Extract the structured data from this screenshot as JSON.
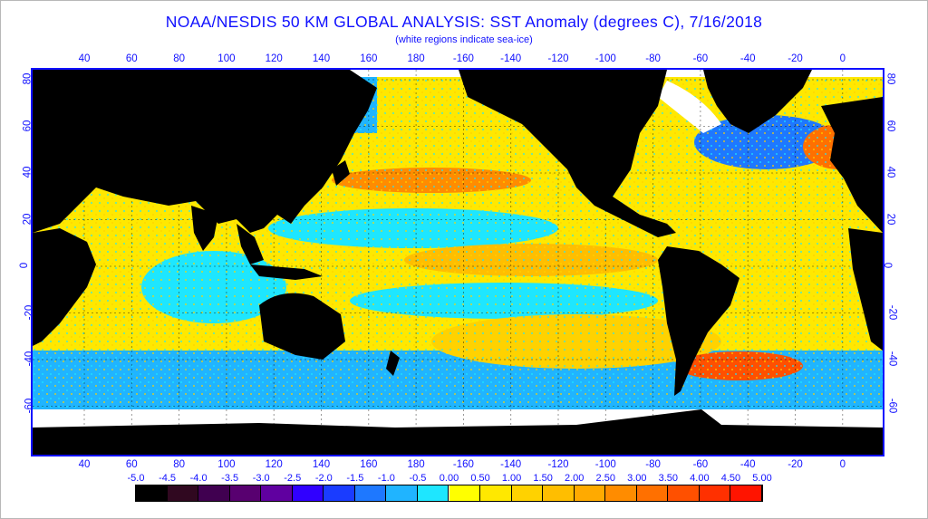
{
  "title": "NOAA/NESDIS 50 KM GLOBAL ANALYSIS: SST Anomaly (degrees C), 7/16/2018",
  "subtitle": "(white regions indicate sea-ice)",
  "map": {
    "lon_ticks_top": [
      "40",
      "60",
      "80",
      "100",
      "120",
      "140",
      "160",
      "180",
      "-160",
      "-140",
      "-120",
      "-100",
      "-80",
      "-60",
      "-40",
      "-20",
      "0"
    ],
    "lon_ticks_bottom": [
      "40",
      "60",
      "80",
      "100",
      "120",
      "140",
      "160",
      "180",
      "-160",
      "-140",
      "-120",
      "-100",
      "-80",
      "-60",
      "-40",
      "-20",
      "0"
    ],
    "lat_ticks_left": [
      "80",
      "60",
      "40",
      "20",
      "0",
      "-20",
      "-40",
      "-60"
    ],
    "lat_ticks_right": [
      "80",
      "60",
      "40",
      "20",
      "0",
      "-20",
      "-40",
      "-60"
    ],
    "colors": {
      "land": "#000000",
      "ice": "#ffffff",
      "grid": "#1010ff",
      "axis": "#1010ff"
    }
  },
  "colorbar": {
    "labels": [
      "-5.0",
      "-4.5",
      "-4.0",
      "-3.5",
      "-3.0",
      "-2.5",
      "-2.0",
      "-1.5",
      "-1.0",
      "-0.5",
      "0.00",
      "0.50",
      "1.00",
      "1.50",
      "2.00",
      "2.50",
      "3.00",
      "3.50",
      "4.00",
      "4.50",
      "5.00"
    ],
    "colors": [
      "#000000",
      "#300820",
      "#400050",
      "#580070",
      "#6000a0",
      "#3000ff",
      "#1a3cff",
      "#1e78ff",
      "#20b4ff",
      "#1ee6ff",
      "#ffff00",
      "#ffe800",
      "#ffd200",
      "#ffbe00",
      "#ffaa00",
      "#ff8c00",
      "#ff7000",
      "#ff5000",
      "#ff3000",
      "#ff1400"
    ]
  }
}
